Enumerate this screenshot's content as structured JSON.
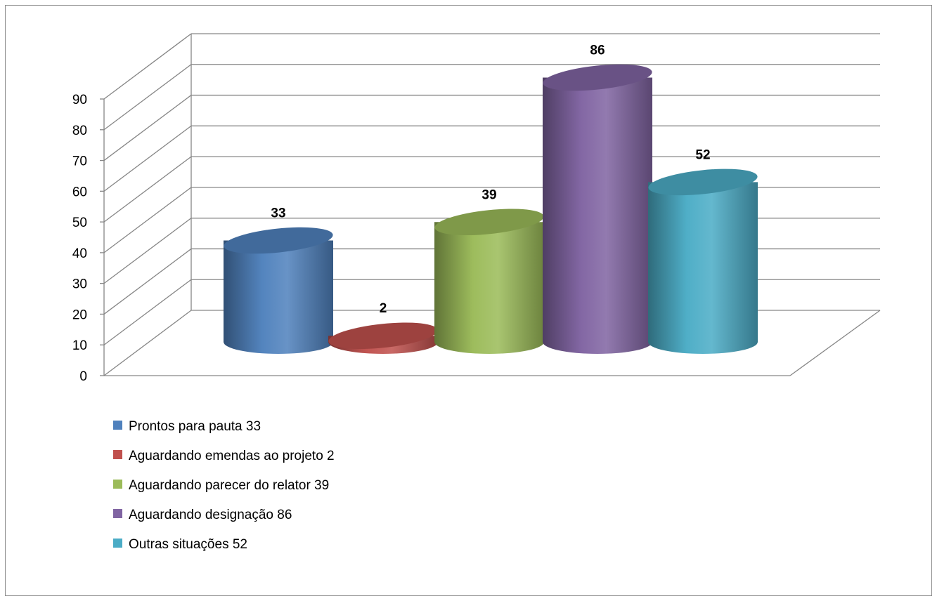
{
  "chart_data": {
    "type": "bar",
    "categories": [
      "Prontos para pauta",
      "Aguardando emendas ao projeto",
      "Aguardando parecer do relator",
      "Aguardando designação",
      "Outras situações"
    ],
    "values": [
      33,
      2,
      39,
      86,
      52
    ],
    "data_labels": [
      "33",
      "2",
      "39",
      "86",
      "52"
    ],
    "legend": [
      {
        "name": "Prontos para pauta",
        "value": "33"
      },
      {
        "name": "Aguardando emendas ao projeto",
        "value": "2"
      },
      {
        "name": "Aguardando parecer do relator",
        "value": "39"
      },
      {
        "name": "Aguardando designação",
        "value": "86"
      },
      {
        "name": "Outras situações",
        "value": "52"
      }
    ],
    "colors": [
      "#4f81bd",
      "#c0504d",
      "#9bbb59",
      "#8064a2",
      "#4bacc6"
    ],
    "shape": "cylinder-3d",
    "title": "",
    "xlabel": "",
    "ylabel": "",
    "ylim": [
      0,
      90
    ],
    "yticks": [
      0,
      10,
      20,
      30,
      40,
      50,
      60,
      70,
      80,
      90
    ],
    "grid": true,
    "legend_placement": "bottom-left"
  }
}
